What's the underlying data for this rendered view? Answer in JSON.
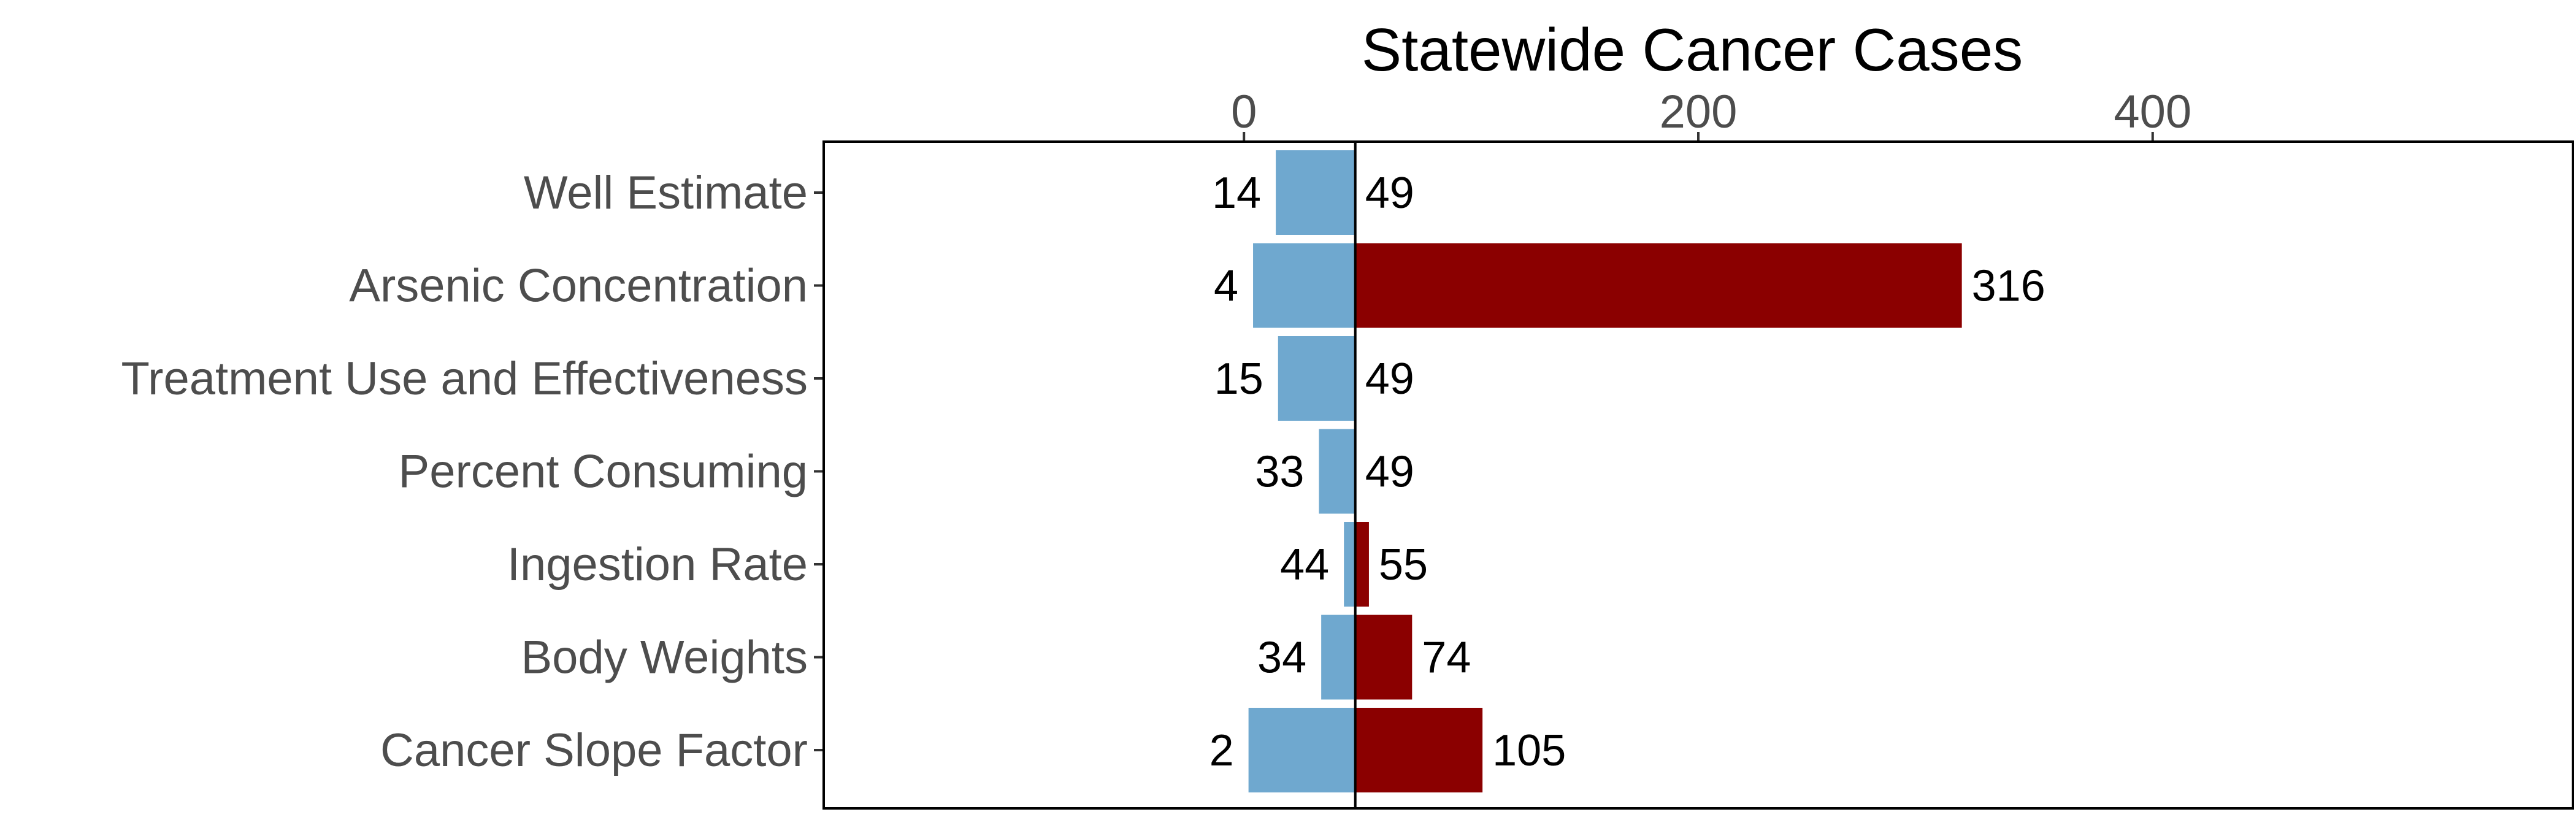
{
  "chart_data": {
    "type": "bar",
    "orientation": "horizontal",
    "layout": "tornado",
    "title": "Statewide Cancer Cases",
    "xlabel": "",
    "ylabel": "",
    "x_axis_position": "top",
    "x_ticks": [
      0,
      200,
      400
    ],
    "xlim": [
      -185,
      585
    ],
    "baseline": 49,
    "grid": false,
    "categories": [
      "Well Estimate",
      "Arsenic Concentration",
      "Treatment Use and Effectiveness",
      "Percent Consuming",
      "Ingestion Rate",
      "Body Weights",
      "Cancer Slope Factor"
    ],
    "low_values": [
      14,
      4,
      15,
      33,
      44,
      34,
      2
    ],
    "high_values": [
      49,
      316,
      49,
      49,
      55,
      74,
      105
    ],
    "low_color": "#6fa8cf",
    "high_color": "#8b0000"
  }
}
